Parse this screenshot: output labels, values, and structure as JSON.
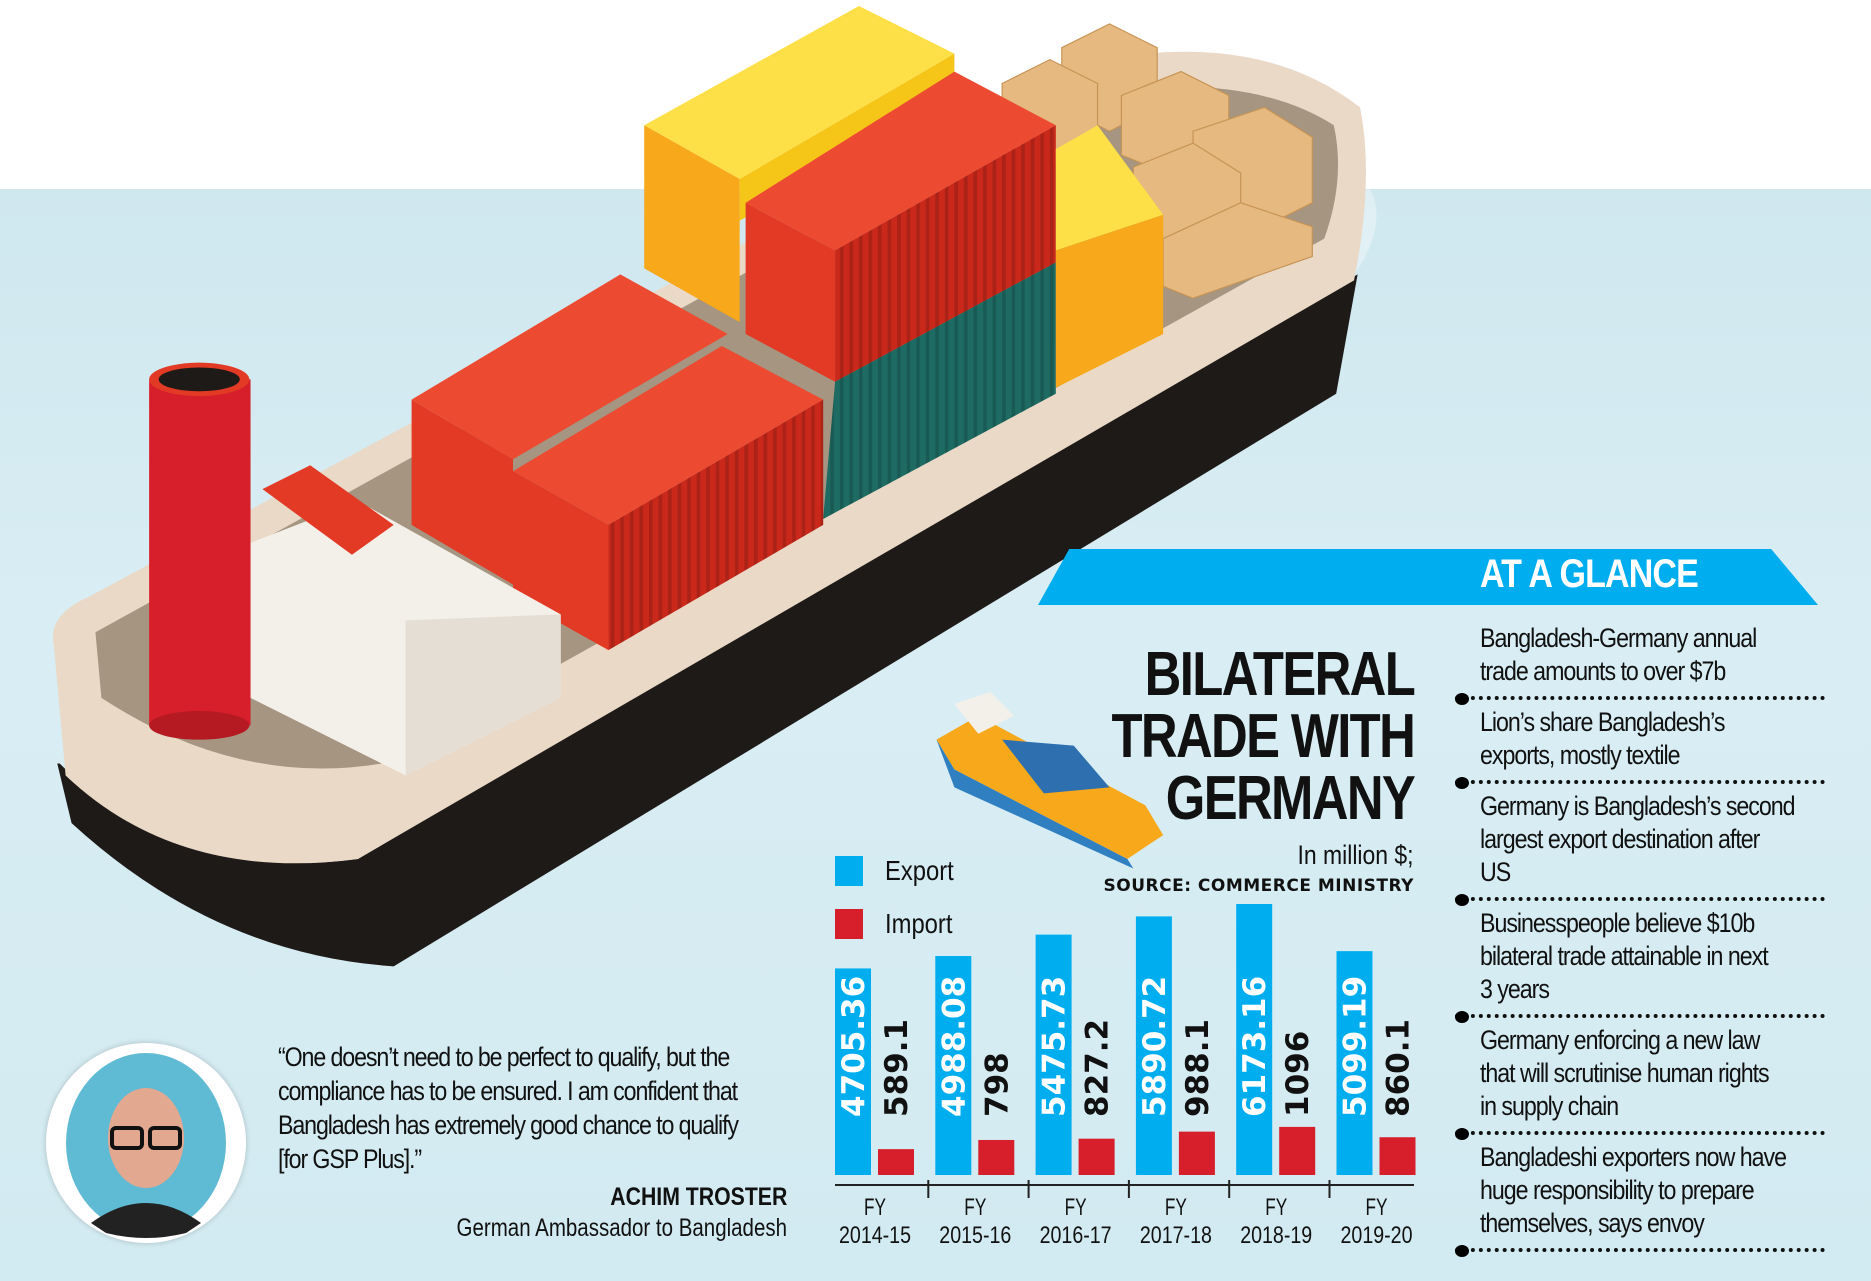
{
  "title_lines": [
    "BILATERAL",
    "TRADE WITH",
    "GERMANY"
  ],
  "units": "In million $;",
  "source": "SOURCE: COMMERCE MINISTRY",
  "glance": {
    "title": "AT A GLANCE",
    "items": [
      [
        "Bangladesh-Germany annual",
        "trade amounts to over $7b"
      ],
      [
        "Lion’s share Bangladesh’s",
        "exports, mostly textile"
      ],
      [
        "Germany is Bangladesh’s second",
        "largest export destination after",
        "US"
      ],
      [
        "Businesspeople believe $10b",
        "bilateral trade attainable in next",
        "3 years"
      ],
      [
        "Germany enforcing a new law",
        "that will scrutinise human rights",
        "in supply chain"
      ],
      [
        "Bangladeshi exporters now have",
        "huge responsibility to prepare",
        "themselves, says envoy"
      ]
    ]
  },
  "quote": {
    "lines": [
      "“One doesn’t need to be perfect to qualify, but the",
      "compliance has to be ensured. I am confident that",
      "Bangladesh has extremely good chance to qualify",
      "[for GSP Plus].”"
    ],
    "name": "ACHIM TROSTER",
    "role": "German Ambassador to Bangladesh"
  },
  "colors": {
    "export": "#00aeef",
    "import": "#d71f2b",
    "accent": "#00aeef"
  },
  "chart_data": {
    "type": "bar",
    "title": "BILATERAL TRADE WITH GERMANY",
    "ylabel": "In million $",
    "categories": [
      [
        "FY",
        "2014-15"
      ],
      [
        "FY",
        "2015-16"
      ],
      [
        "FY",
        "2016-17"
      ],
      [
        "FY",
        "2017-18"
      ],
      [
        "FY",
        "2018-19"
      ],
      [
        "FY",
        "2019-20"
      ]
    ],
    "series": [
      {
        "name": "Export",
        "values": [
          4705.36,
          4988.08,
          5475.73,
          5890.72,
          6173.16,
          5099.19
        ],
        "labels": [
          "4705.36",
          "4988.08",
          "5475.73",
          "5890.72",
          "6173.16",
          "5099.19"
        ]
      },
      {
        "name": "Import",
        "values": [
          589.1,
          798,
          827.2,
          988.1,
          1096,
          860.1
        ],
        "labels": [
          "589.1",
          "798",
          "827.2",
          "988.1",
          "1096",
          "860.1"
        ]
      }
    ],
    "ylim": [
      0,
      6500
    ],
    "legend": "top-left",
    "grid": false
  }
}
